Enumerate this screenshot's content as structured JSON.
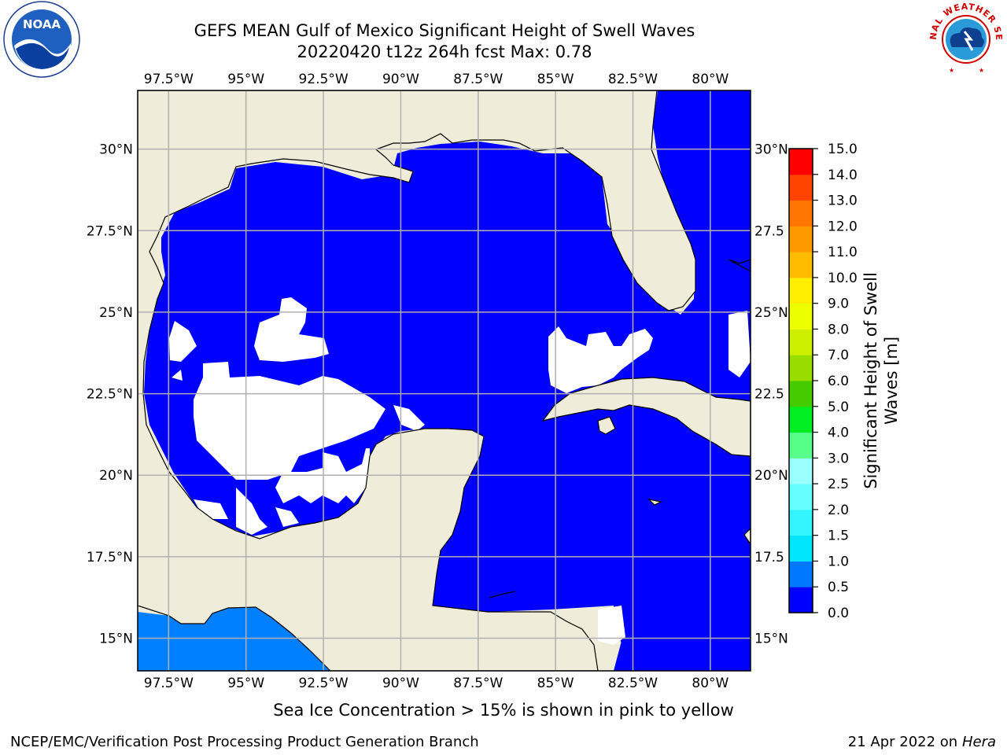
{
  "header": {
    "title_line1": "GEFS MEAN Gulf of Mexico Significant Height of Swell Waves",
    "title_line2": "20220420 t12z 264h fcst   Max: 0.78"
  },
  "logos": {
    "left": "NOAA",
    "right_ring": "NATIONAL WEATHER SERVICE"
  },
  "chart_data": {
    "type": "heatmap",
    "title": "GEFS MEAN Gulf of Mexico Significant Height of Swell Waves",
    "subtitle": "20220420 t12z 264h fcst   Max: 0.78",
    "max_value": 0.78,
    "lon_range": [
      -98.5,
      -78.7
    ],
    "lat_range": [
      14.0,
      31.8
    ],
    "lon_ticks": [
      -97.5,
      -95,
      -92.5,
      -90,
      -87.5,
      -85,
      -82.5,
      -80
    ],
    "lon_tick_labels": [
      "97.5°W",
      "95°W",
      "92.5°W",
      "90°W",
      "87.5°W",
      "85°W",
      "82.5°W",
      "80°W"
    ],
    "lat_ticks": [
      30,
      27.5,
      25,
      22.5,
      20,
      17.5,
      15
    ],
    "lat_tick_labels": [
      "30°N",
      "27.5°N",
      "25°N",
      "22.5°N",
      "20°N",
      "17.5°N",
      "15°N"
    ],
    "right_lat_tick_labels": [
      "30°N",
      "27.5",
      "25°N",
      "22.5",
      "20°N",
      "17.5",
      "15°N"
    ],
    "grid": true,
    "colorbar": {
      "label": "Significant Height of Swell Waves [m]",
      "label_line1": "Significant Height of Swell",
      "label_line2": "Waves [m]",
      "levels": [
        0.0,
        0.5,
        1.0,
        1.5,
        2.0,
        2.5,
        3.0,
        4.0,
        5.0,
        6.0,
        7.0,
        8.0,
        9.0,
        10.0,
        11.0,
        12.0,
        13.0,
        14.0,
        15.0
      ],
      "tick_labels": [
        "0.0",
        "0.5",
        "1.0",
        "1.5",
        "2.0",
        "2.5",
        "3.0",
        "4.0",
        "5.0",
        "6.0",
        "7.0",
        "8.0",
        "9.0",
        "10.0",
        "11.0",
        "12.0",
        "13.0",
        "14.0",
        "15.0"
      ],
      "colors": [
        "#0000ff",
        "#0077ff",
        "#00e6ff",
        "#33f4ff",
        "#66ffff",
        "#99ffff",
        "#55ff88",
        "#00ee22",
        "#44cc00",
        "#99dd00",
        "#ccee00",
        "#eeff00",
        "#ffee00",
        "#ffbb00",
        "#ff9900",
        "#ff7700",
        "#ff4400",
        "#ff0000"
      ]
    },
    "colors": {
      "land": "#efedd9",
      "wave_low": "#0000ff",
      "wave_mid": "#0080ff",
      "no_data": "#ffffff",
      "grid": "#b0b0b0",
      "coastline": "#000000"
    }
  },
  "footer": {
    "sea_ice_note": "Sea Ice Concentration > 15% is shown in pink to yellow",
    "credit": "NCEP/EMC/Verification Post Processing Product Generation Branch",
    "date": "21 Apr 2022 on ",
    "machine": "Hera"
  }
}
